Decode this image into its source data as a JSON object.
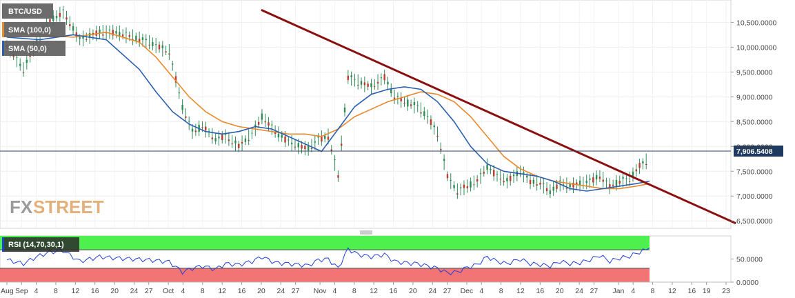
{
  "chart_data": [
    {
      "type": "line",
      "symbol": "BTC/USD",
      "legend": [
        {
          "label": "BTC/USD",
          "color": "#6b6b6b"
        },
        {
          "label": "SMA (100,0)",
          "color": "#e8892c"
        },
        {
          "label": "SMA (50,0)",
          "color": "#2a5fb0"
        }
      ],
      "ylim": [
        6350,
        10950
      ],
      "yticks": [
        "10,500.0000",
        "10,000.0000",
        "9,500.0000",
        "9,000.0000",
        "8,500.0000",
        "8,000.0000",
        "7,500.0000",
        "7,000.0000",
        "6,500.0000"
      ],
      "ytick_values": [
        10500,
        10000,
        9500,
        9000,
        8500,
        8000,
        7500,
        7000,
        6500
      ],
      "last_price": 7906.5408,
      "last_price_label": "7,906.5408",
      "colors": {
        "sma100": "#e8892c",
        "sma50": "#2a5fb0",
        "trendline": "#8b0f0f",
        "candle": "#2e8b57",
        "price_line": "#2a3f66"
      },
      "trendline": {
        "start": {
          "date": "2019-10-20",
          "value": 10750
        },
        "end": {
          "date": "2020-01-25",
          "value": 6450
        }
      },
      "price_points": [
        [
          0,
          10050
        ],
        [
          5,
          9550
        ],
        [
          9,
          10100
        ],
        [
          13,
          10550
        ],
        [
          17,
          10700
        ],
        [
          22,
          10150
        ],
        [
          28,
          10300
        ],
        [
          33,
          10300
        ],
        [
          38,
          10200
        ],
        [
          43,
          10100
        ],
        [
          49,
          9900
        ],
        [
          53,
          8800
        ],
        [
          56,
          8300
        ],
        [
          59,
          8400
        ],
        [
          63,
          8150
        ],
        [
          66,
          8200
        ],
        [
          70,
          8000
        ],
        [
          74,
          8250
        ],
        [
          77,
          8600
        ],
        [
          81,
          8300
        ],
        [
          85,
          8100
        ],
        [
          88,
          8000
        ],
        [
          91,
          7950
        ],
        [
          94,
          8150
        ],
        [
          97,
          8200
        ],
        [
          100,
          7400
        ],
        [
          103,
          9400
        ],
        [
          106,
          9300
        ],
        [
          110,
          9200
        ],
        [
          114,
          9400
        ],
        [
          117,
          9000
        ],
        [
          120,
          8900
        ],
        [
          124,
          8800
        ],
        [
          127,
          8600
        ],
        [
          130,
          8250
        ],
        [
          133,
          7400
        ],
        [
          136,
          7100
        ],
        [
          139,
          7200
        ],
        [
          142,
          7300
        ],
        [
          145,
          7600
        ],
        [
          148,
          7400
        ],
        [
          151,
          7300
        ],
        [
          155,
          7500
        ],
        [
          158,
          7300
        ],
        [
          161,
          7250
        ],
        [
          164,
          7100
        ],
        [
          167,
          7250
        ],
        [
          170,
          7200
        ],
        [
          173,
          7250
        ],
        [
          176,
          7300
        ],
        [
          179,
          7400
        ],
        [
          182,
          7200
        ],
        [
          185,
          7300
        ],
        [
          188,
          7350
        ],
        [
          191,
          7600
        ],
        [
          193,
          7700
        ],
        [
          194,
          7906
        ]
      ],
      "sma50_points": [
        [
          0,
          10200
        ],
        [
          10,
          10150
        ],
        [
          20,
          10250
        ],
        [
          30,
          10150
        ],
        [
          40,
          9550
        ],
        [
          45,
          9100
        ],
        [
          50,
          8700
        ],
        [
          55,
          8450
        ],
        [
          60,
          8300
        ],
        [
          65,
          8250
        ],
        [
          70,
          8300
        ],
        [
          75,
          8400
        ],
        [
          80,
          8350
        ],
        [
          85,
          8200
        ],
        [
          90,
          8050
        ],
        [
          95,
          7900
        ],
        [
          100,
          8350
        ],
        [
          105,
          8800
        ],
        [
          110,
          9050
        ],
        [
          115,
          9150
        ],
        [
          120,
          9200
        ],
        [
          125,
          9150
        ],
        [
          130,
          8900
        ],
        [
          135,
          8500
        ],
        [
          140,
          8000
        ],
        [
          145,
          7650
        ],
        [
          150,
          7500
        ],
        [
          155,
          7450
        ],
        [
          160,
          7400
        ],
        [
          165,
          7300
        ],
        [
          170,
          7150
        ],
        [
          175,
          7100
        ],
        [
          180,
          7150
        ],
        [
          185,
          7200
        ],
        [
          190,
          7250
        ],
        [
          194,
          7300
        ]
      ],
      "sma100_points": [
        [
          0,
          10300
        ],
        [
          10,
          10250
        ],
        [
          20,
          10200
        ],
        [
          30,
          10300
        ],
        [
          40,
          10100
        ],
        [
          45,
          9800
        ],
        [
          50,
          9400
        ],
        [
          55,
          9000
        ],
        [
          60,
          8700
        ],
        [
          65,
          8500
        ],
        [
          70,
          8400
        ],
        [
          75,
          8350
        ],
        [
          80,
          8300
        ],
        [
          85,
          8250
        ],
        [
          90,
          8250
        ],
        [
          95,
          8200
        ],
        [
          100,
          8350
        ],
        [
          105,
          8600
        ],
        [
          110,
          8750
        ],
        [
          115,
          8900
        ],
        [
          120,
          9000
        ],
        [
          125,
          9100
        ],
        [
          130,
          9050
        ],
        [
          135,
          8900
        ],
        [
          140,
          8600
        ],
        [
          145,
          8200
        ],
        [
          150,
          7800
        ],
        [
          155,
          7550
        ],
        [
          160,
          7400
        ],
        [
          165,
          7300
        ],
        [
          170,
          7250
        ],
        [
          175,
          7200
        ],
        [
          180,
          7150
        ],
        [
          185,
          7150
        ],
        [
          190,
          7200
        ],
        [
          194,
          7250
        ]
      ]
    },
    {
      "type": "line",
      "legend_label": "RSI (14,70,30,1)",
      "ylim": [
        0,
        100
      ],
      "yticks": [
        "50.0000",
        "0.0000"
      ],
      "ytick_values": [
        50,
        0
      ],
      "overbought": 70,
      "oversold": 30,
      "colors": {
        "overbought_zone": "#4ef04e",
        "oversold_zone": "#f27474",
        "rsi_line": "#1f3fd6"
      },
      "rsi_points": [
        [
          0,
          48
        ],
        [
          5,
          40
        ],
        [
          9,
          55
        ],
        [
          13,
          65
        ],
        [
          17,
          68
        ],
        [
          22,
          45
        ],
        [
          28,
          55
        ],
        [
          33,
          52
        ],
        [
          38,
          50
        ],
        [
          43,
          48
        ],
        [
          49,
          44
        ],
        [
          53,
          22
        ],
        [
          56,
          30
        ],
        [
          59,
          35
        ],
        [
          63,
          28
        ],
        [
          66,
          40
        ],
        [
          70,
          38
        ],
        [
          74,
          45
        ],
        [
          77,
          55
        ],
        [
          81,
          42
        ],
        [
          85,
          40
        ],
        [
          88,
          38
        ],
        [
          91,
          36
        ],
        [
          94,
          48
        ],
        [
          97,
          50
        ],
        [
          100,
          30
        ],
        [
          103,
          72
        ],
        [
          106,
          60
        ],
        [
          110,
          55
        ],
        [
          114,
          60
        ],
        [
          117,
          45
        ],
        [
          120,
          42
        ],
        [
          124,
          40
        ],
        [
          127,
          35
        ],
        [
          130,
          30
        ],
        [
          133,
          20
        ],
        [
          136,
          22
        ],
        [
          139,
          32
        ],
        [
          142,
          38
        ],
        [
          145,
          55
        ],
        [
          148,
          45
        ],
        [
          151,
          40
        ],
        [
          155,
          50
        ],
        [
          158,
          40
        ],
        [
          161,
          38
        ],
        [
          164,
          35
        ],
        [
          167,
          45
        ],
        [
          170,
          40
        ],
        [
          173,
          42
        ],
        [
          176,
          48
        ],
        [
          179,
          58
        ],
        [
          182,
          45
        ],
        [
          185,
          52
        ],
        [
          188,
          56
        ],
        [
          191,
          65
        ],
        [
          193,
          70
        ],
        [
          194,
          74
        ]
      ]
    }
  ],
  "x_axis": {
    "labels": [
      "Aug",
      "Sep",
      "4",
      "8",
      "12",
      "16",
      "20",
      "24",
      "27",
      "Oct",
      "4",
      "8",
      "12",
      "16",
      "20",
      "24",
      "27",
      "Nov",
      "4",
      "8",
      "12",
      "16",
      "20",
      "24",
      "27",
      "Dec",
      "4",
      "8",
      "12",
      "16",
      "20",
      "24",
      "27",
      "Jan",
      "4",
      "8",
      "12",
      "16",
      "19",
      "23"
    ],
    "dates": [
      "2019-08-29",
      "2019-09-01",
      "2019-09-04",
      "2019-09-08",
      "2019-09-12",
      "2019-09-16",
      "2019-09-20",
      "2019-09-24",
      "2019-09-27",
      "2019-10-01",
      "2019-10-04",
      "2019-10-08",
      "2019-10-12",
      "2019-10-16",
      "2019-10-20",
      "2019-10-24",
      "2019-10-27",
      "2019-11-01",
      "2019-11-04",
      "2019-11-08",
      "2019-11-12",
      "2019-11-16",
      "2019-11-20",
      "2019-11-24",
      "2019-11-27",
      "2019-12-01",
      "2019-12-04",
      "2019-12-08",
      "2019-12-12",
      "2019-12-16",
      "2019-12-20",
      "2019-12-24",
      "2019-12-27",
      "2020-01-01",
      "2020-01-04",
      "2020-01-08",
      "2020-01-12",
      "2020-01-16",
      "2020-01-19",
      "2020-01-23"
    ]
  },
  "brand": {
    "fx": "FX",
    "street": "STREET"
  }
}
